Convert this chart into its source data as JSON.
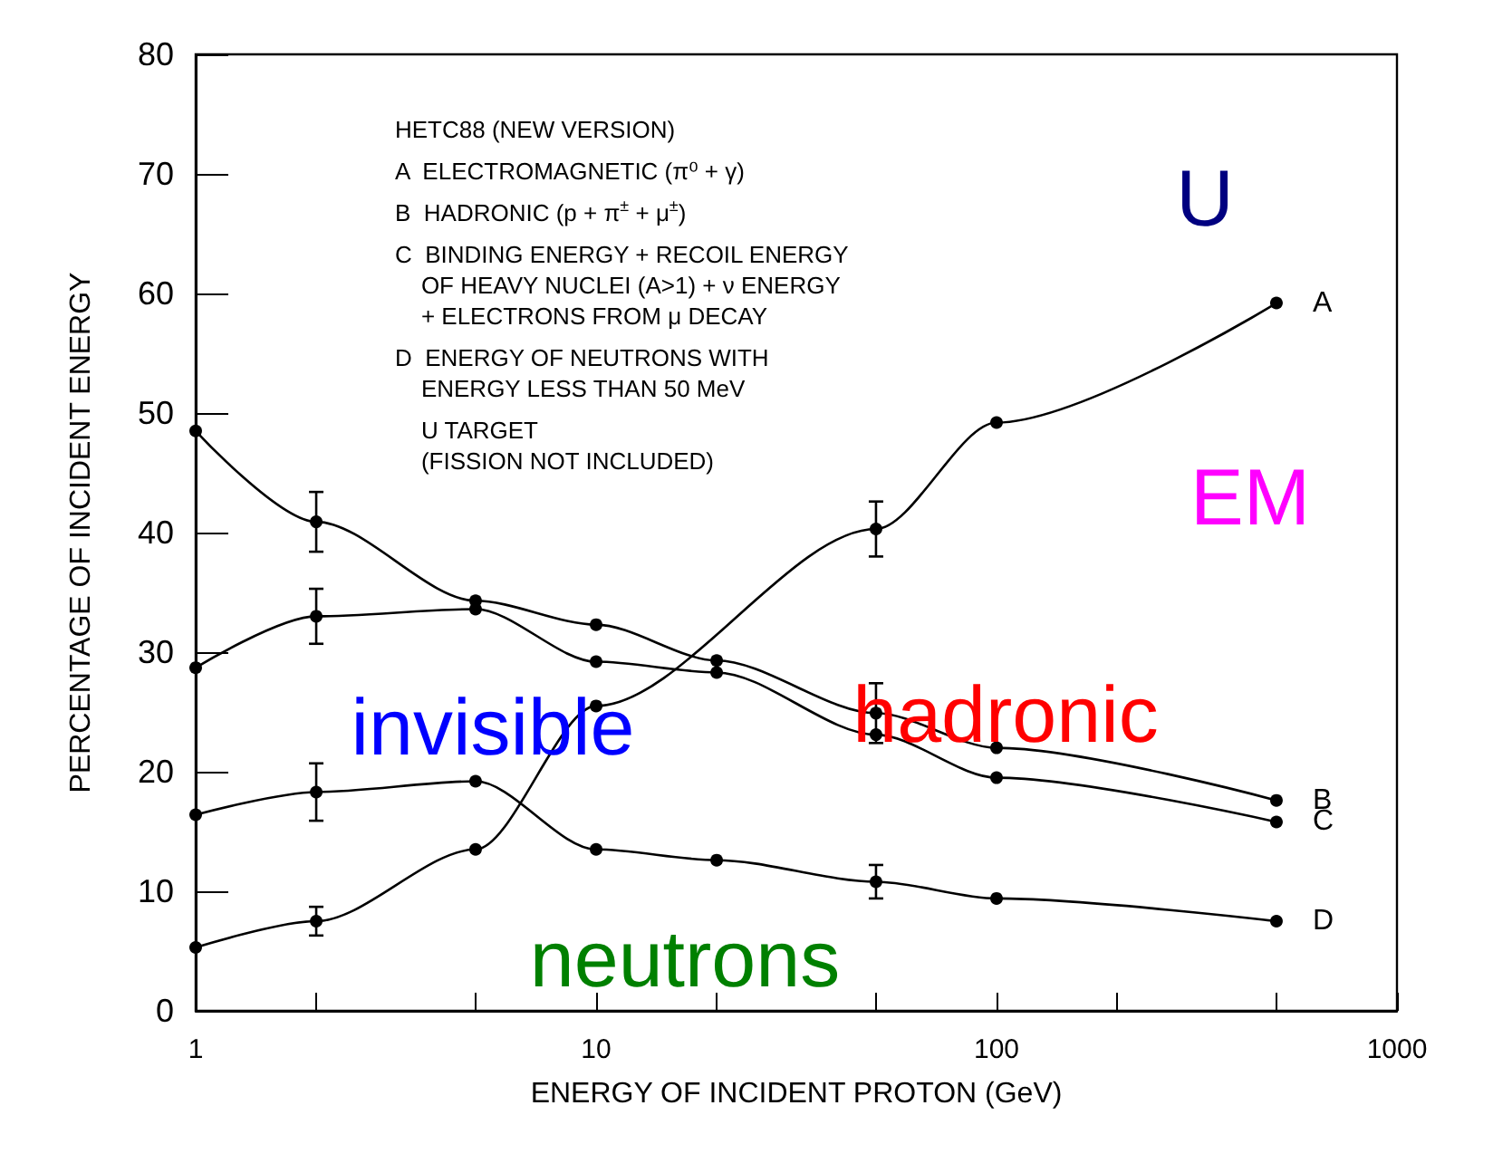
{
  "chart_data": {
    "type": "line",
    "xlabel": "ENERGY OF INCIDENT PROTON (GeV)",
    "ylabel": "PERCENTAGE OF INCIDENT ENERGY",
    "log": "x",
    "xlim": [
      1,
      1000
    ],
    "xticks": [
      1,
      {
        "value": 2,
        "label": null
      },
      {
        "value": 5,
        "label": null
      },
      10,
      {
        "value": 20,
        "label": null
      },
      {
        "value": 50,
        "label": null
      },
      100,
      {
        "value": 200,
        "label": null
      },
      {
        "value": 500,
        "label": null
      },
      1000
    ],
    "ylim": [
      0,
      80
    ],
    "yticks": [
      0,
      10,
      20,
      30,
      40,
      50,
      60,
      70,
      80
    ],
    "grid": false,
    "legend": false,
    "marker": "circle",
    "line_style": "solid",
    "series": [
      {
        "name": "A",
        "color": "#000000",
        "x": [
          1,
          2,
          5,
          10,
          50,
          100,
          500
        ],
        "values": [
          5.3,
          7.5,
          13.5,
          25.5,
          40.3,
          49.2,
          59.2
        ],
        "errors": [
          null,
          1.2,
          null,
          null,
          2.3,
          null,
          null
        ]
      },
      {
        "name": "B",
        "color": "#000000",
        "x": [
          1,
          2,
          5,
          10,
          20,
          50,
          100,
          500
        ],
        "values": [
          48.5,
          40.9,
          34.3,
          32.3,
          29.3,
          24.9,
          22.0,
          17.6
        ],
        "errors": [
          null,
          2.5,
          null,
          null,
          null,
          2.5,
          null,
          null
        ]
      },
      {
        "name": "C",
        "color": "#000000",
        "x": [
          1,
          2,
          5,
          10,
          20,
          50,
          100,
          500
        ],
        "values": [
          28.7,
          33.0,
          33.6,
          29.2,
          28.3,
          23.1,
          19.5,
          15.8
        ],
        "errors": [
          null,
          2.3,
          null,
          null,
          null,
          null,
          null,
          null
        ]
      },
      {
        "name": "D",
        "color": "#000000",
        "x": [
          1,
          2,
          5,
          10,
          20,
          50,
          100,
          500
        ],
        "values": [
          16.4,
          18.3,
          19.2,
          13.5,
          12.6,
          10.8,
          9.4,
          7.5
        ],
        "errors": [
          null,
          2.4,
          null,
          null,
          null,
          1.4,
          null,
          null
        ]
      }
    ],
    "annotations": [
      "HETC88 (NEW VERSION)",
      "A  ELECTROMAGNETIC (π⁰ + γ)",
      "B  HADRONIC (p + π$^{±}$ + μ$^{±}$)",
      "C  BINDING ENERGY + RECOIL ENERGY\n    OF HEAVY NUCLEI (A>1) + ν ENERGY\n    + ELECTRONS FROM μ DECAY",
      "D  ENERGY OF NEUTRONS WITH\n    ENERGY LESS THAN 50 MeV",
      "    U TARGET\n    (FISSION NOT INCLUDED)",
      "U",
      "EM",
      "invisible",
      "hadronic",
      "neutrons"
    ]
  }
}
